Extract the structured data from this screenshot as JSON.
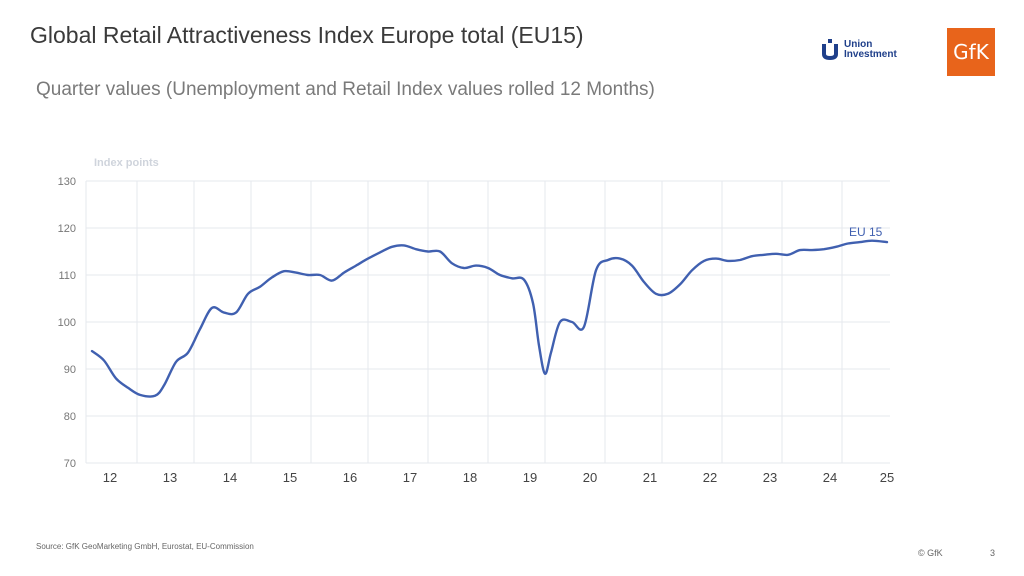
{
  "header": {
    "title": "Global Retail Attractiveness Index Europe total (EU15)",
    "subtitle": "Quarter values (Unemployment and Retail Index values rolled 12 Months)"
  },
  "logos": {
    "union_investment": "Union Investment",
    "union_line1": "Union",
    "union_line2": "Investment",
    "gfk": "GfK",
    "union_color": "#1f3f8a",
    "gfk_color": "#e8641b"
  },
  "footer": {
    "source": "Source: GfK GeoMarketing GmbH, Eurostat, EU-Commission",
    "copyright": "© GfK",
    "page": "3"
  },
  "chart_data": {
    "type": "line",
    "ylabel": "Index points",
    "ylim": [
      70,
      130
    ],
    "yticks": [
      70,
      80,
      90,
      100,
      110,
      120,
      130
    ],
    "xlim": [
      2011.6,
      2025.0
    ],
    "xticks": [
      {
        "label": "12",
        "x": 2012.0
      },
      {
        "label": "13",
        "x": 2013.0
      },
      {
        "label": "14",
        "x": 2014.0
      },
      {
        "label": "15",
        "x": 2015.0
      },
      {
        "label": "16",
        "x": 2016.0
      },
      {
        "label": "17",
        "x": 2017.0
      },
      {
        "label": "18",
        "x": 2018.0
      },
      {
        "label": "19",
        "x": 2019.0
      },
      {
        "label": "20",
        "x": 2020.0
      },
      {
        "label": "21",
        "x": 2021.0
      },
      {
        "label": "22",
        "x": 2022.0
      },
      {
        "label": "23",
        "x": 2023.0
      },
      {
        "label": "24",
        "x": 2024.0
      },
      {
        "label": "25",
        "x": 2024.95
      }
    ],
    "gridlines": [
      2012.45,
      2013.4,
      2014.35,
      2015.35,
      2016.3,
      2017.3,
      2018.3,
      2019.25,
      2020.25,
      2021.2,
      2022.2,
      2023.2,
      2024.2
    ],
    "grid": true,
    "series": [
      {
        "name": "EU 15",
        "color": "#4060b0",
        "x": [
          2011.7,
          2011.9,
          2012.1,
          2012.3,
          2012.5,
          2012.75,
          2012.9,
          2013.1,
          2013.3,
          2013.5,
          2013.7,
          2013.9,
          2014.1,
          2014.3,
          2014.5,
          2014.7,
          2014.9,
          2015.1,
          2015.3,
          2015.5,
          2015.7,
          2015.9,
          2016.1,
          2016.3,
          2016.5,
          2016.7,
          2016.9,
          2017.1,
          2017.3,
          2017.5,
          2017.7,
          2017.9,
          2018.1,
          2018.3,
          2018.5,
          2018.7,
          2018.9,
          2019.05,
          2019.15,
          2019.25,
          2019.35,
          2019.5,
          2019.7,
          2019.9,
          2020.1,
          2020.3,
          2020.5,
          2020.7,
          2020.9,
          2021.1,
          2021.3,
          2021.5,
          2021.7,
          2021.9,
          2022.1,
          2022.3,
          2022.5,
          2022.7,
          2022.9,
          2023.1,
          2023.3,
          2023.5,
          2023.7,
          2023.9,
          2024.1,
          2024.3,
          2024.5,
          2024.7,
          2024.95
        ],
        "values": [
          93.8,
          91.8,
          88.0,
          86.0,
          84.5,
          84.3,
          86.5,
          91.5,
          93.5,
          98.5,
          103.0,
          102.0,
          102.0,
          106.0,
          107.5,
          109.5,
          110.8,
          110.5,
          110.0,
          110.0,
          108.8,
          110.5,
          112.0,
          113.5,
          114.8,
          116.0,
          116.3,
          115.5,
          115.0,
          115.0,
          112.5,
          111.5,
          112.0,
          111.5,
          110.0,
          109.3,
          109.0,
          104.0,
          95.0,
          89.0,
          93.5,
          100.0,
          100.0,
          99.0,
          111.0,
          113.2,
          113.5,
          112.0,
          108.5,
          106.0,
          106.0,
          108.0,
          111.0,
          113.0,
          113.5,
          113.0,
          113.2,
          114.0,
          114.3,
          114.5,
          114.3,
          115.3,
          115.3,
          115.5,
          116.0,
          116.7,
          117.0,
          117.3,
          117.0
        ],
        "end_label": "EU 15"
      }
    ]
  }
}
